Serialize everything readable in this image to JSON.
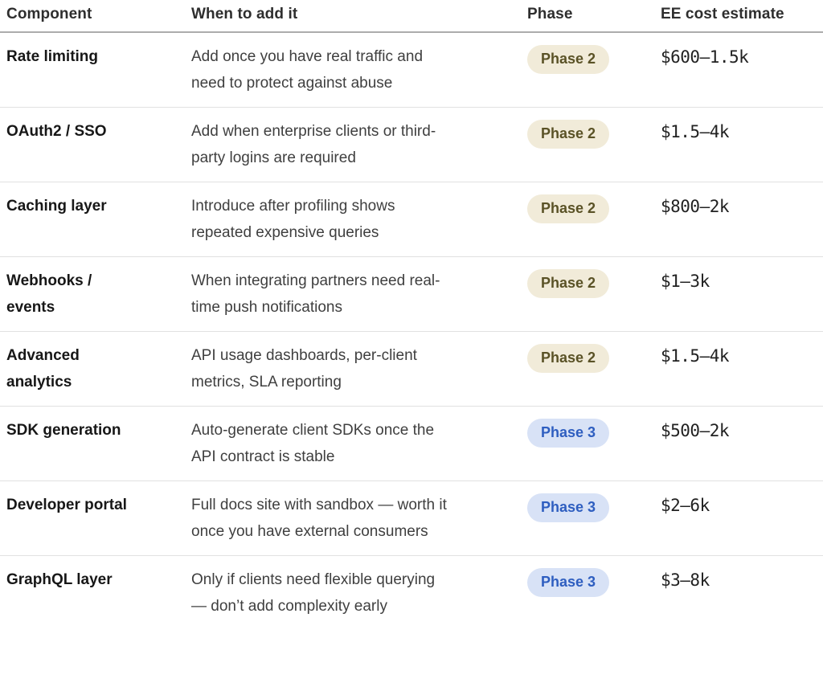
{
  "colors": {
    "phase2_bg": "#F1EBD9",
    "phase2_text": "#5A5226",
    "phase3_bg": "#D8E2F6",
    "phase3_text": "#2E5EC0",
    "header_border": "#ACACAC",
    "row_border": "#E1E1E1",
    "component_text": "#171717",
    "body_text": "#3F3F3F",
    "header_text": "#2E2E2E",
    "cost_text": "#212121"
  },
  "table": {
    "headers": [
      "Component",
      "When to add it",
      "Phase",
      "EE cost estimate"
    ],
    "rows": [
      {
        "component": "Rate limiting",
        "when": "Add once you have real traffic and need to protect against abuse",
        "phase": "Phase 2",
        "cost": "$600—1.5k"
      },
      {
        "component": "OAuth2 / SSO",
        "when": "Add when enterprise clients or third-party logins are required",
        "phase": "Phase 2",
        "cost": "$1.5—4k"
      },
      {
        "component": "Caching layer",
        "when": "Introduce after profiling shows repeated expensive queries",
        "phase": "Phase 2",
        "cost": "$800—2k"
      },
      {
        "component": "Webhooks / events",
        "when": "When integrating partners need real-time push notifications",
        "phase": "Phase 2",
        "cost": "$1—3k"
      },
      {
        "component": "Advanced analytics",
        "when": "API usage dashboards, per-client metrics, SLA reporting",
        "phase": "Phase 2",
        "cost": "$1.5—4k"
      },
      {
        "component": "SDK generation",
        "when": "Auto-generate client SDKs once the API contract is stable",
        "phase": "Phase 3",
        "cost": "$500—2k"
      },
      {
        "component": "Developer portal",
        "when": "Full docs site with sandbox — worth it once you have external consumers",
        "phase": "Phase 3",
        "cost": "$2—6k"
      },
      {
        "component": "GraphQL layer",
        "when": "Only if clients need flexible querying — don’t add complexity early",
        "phase": "Phase 3",
        "cost": "$3—8k"
      }
    ]
  }
}
